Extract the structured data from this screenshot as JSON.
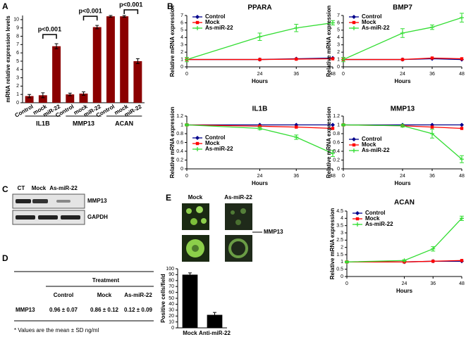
{
  "panels": [
    "A",
    "B",
    "C",
    "D",
    "E"
  ],
  "chart_data": [
    {
      "type": "bar",
      "ylabel": "mRNA relative expression levels",
      "categories": [
        "Control",
        "mock",
        "miR-22",
        "Control",
        "mock",
        "miR-22",
        "Control",
        "mock",
        "miR-22"
      ],
      "groups": [
        "IL1B",
        "MMP13",
        "ACAN"
      ],
      "values": [
        0.8,
        0.9,
        6.8,
        1.0,
        1.1,
        9.1,
        10.4,
        10.4,
        5.0
      ],
      "errors": [
        0.2,
        0.3,
        0.3,
        0.15,
        0.2,
        0.2,
        0.1,
        0.1,
        0.3
      ],
      "color": "#8b0000",
      "ylim": [
        0,
        10.5
      ],
      "yticks": [
        0,
        1,
        2,
        3,
        4,
        5,
        6,
        7,
        8,
        9,
        10
      ],
      "annotations": [
        "p<0.001",
        "p<0.001",
        "p<0.001"
      ]
    },
    {
      "type": "line",
      "title": "PPARA",
      "x": [
        0,
        24,
        36,
        48
      ],
      "xlim": [
        0,
        48
      ],
      "xticks": [
        0,
        24,
        36,
        48
      ],
      "xlabel": "Hours",
      "ylabel": "Relative mRNA expression",
      "ylim": [
        0,
        7
      ],
      "yticks": [
        0,
        1,
        2,
        3,
        4,
        5,
        6,
        7
      ],
      "series": [
        {
          "name": "Control",
          "color": "#00008b",
          "values": [
            1,
            1,
            1.1,
            1.2
          ]
        },
        {
          "name": "Mock",
          "color": "#ff0000",
          "values": [
            1,
            1,
            1.05,
            1.1
          ]
        },
        {
          "name": "As-miR-22",
          "color": "#33dd33",
          "values": [
            1,
            4.1,
            5.3,
            6.0
          ],
          "errors": [
            0.3,
            0.5,
            0.5,
            0.3
          ]
        }
      ]
    },
    {
      "type": "line",
      "title": "BMP7",
      "x": [
        0,
        24,
        36,
        48
      ],
      "xlim": [
        0,
        48
      ],
      "xticks": [
        0,
        24,
        36,
        48
      ],
      "xlabel": "Hours",
      "ylabel": "Relative mRNA expression",
      "ylim": [
        0,
        7
      ],
      "yticks": [
        0,
        1,
        2,
        3,
        4,
        5,
        6,
        7
      ],
      "series": [
        {
          "name": "Control",
          "color": "#00008b",
          "values": [
            1,
            1,
            1.1,
            1.0
          ]
        },
        {
          "name": "Mock",
          "color": "#ff0000",
          "values": [
            1,
            1,
            1.2,
            1.1
          ]
        },
        {
          "name": "As-miR-22",
          "color": "#33dd33",
          "values": [
            1,
            4.6,
            5.4,
            6.7
          ],
          "errors": [
            0.3,
            0.6,
            0.3,
            0.6
          ]
        }
      ]
    },
    {
      "type": "line",
      "title": "IL1B",
      "x": [
        0,
        24,
        36,
        48
      ],
      "xlim": [
        0,
        48
      ],
      "xticks": [
        0,
        24,
        36,
        48
      ],
      "xlabel": "Hours",
      "ylabel": "Relative mRNA expression",
      "ylim": [
        0,
        1.2
      ],
      "yticks": [
        0,
        0.2,
        0.4,
        0.6,
        0.8,
        1,
        1.2
      ],
      "series": [
        {
          "name": "Control",
          "color": "#00008b",
          "values": [
            1,
            1,
            1,
            1
          ]
        },
        {
          "name": "Mock",
          "color": "#ff0000",
          "values": [
            1,
            0.97,
            0.95,
            0.92
          ]
        },
        {
          "name": "As-miR-22",
          "color": "#33dd33",
          "values": [
            1,
            0.92,
            0.72,
            0.35
          ],
          "errors": [
            0.02,
            0.03,
            0.05,
            0.07
          ]
        }
      ]
    },
    {
      "type": "line",
      "title": "MMP13",
      "x": [
        0,
        24,
        36,
        48
      ],
      "xlim": [
        0,
        48
      ],
      "xticks": [
        0,
        24,
        36,
        48
      ],
      "xlabel": "Hours",
      "ylabel": "Relative mRNA expression",
      "ylim": [
        0,
        1.2
      ],
      "yticks": [
        0,
        0.2,
        0.4,
        0.6,
        0.8,
        1,
        1.2
      ],
      "series": [
        {
          "name": "Control",
          "color": "#00008b",
          "values": [
            1,
            1,
            1,
            1
          ]
        },
        {
          "name": "Mock",
          "color": "#ff0000",
          "values": [
            1,
            0.98,
            0.95,
            0.92
          ]
        },
        {
          "name": "As-miR-22",
          "color": "#33dd33",
          "values": [
            1,
            0.98,
            0.8,
            0.22
          ],
          "errors": [
            0.02,
            0.03,
            0.1,
            0.08
          ]
        }
      ]
    },
    {
      "type": "line",
      "title": "ACAN",
      "x": [
        0,
        24,
        36,
        48
      ],
      "xlim": [
        0,
        48
      ],
      "xticks": [
        0,
        24,
        36,
        48
      ],
      "xlabel": "Hours",
      "ylabel": "Relative mRNA expression",
      "ylim": [
        0,
        4.5
      ],
      "yticks": [
        0,
        0.5,
        1,
        1.5,
        2,
        2.5,
        3,
        3.5,
        4,
        4.5
      ],
      "series": [
        {
          "name": "Control",
          "color": "#00008b",
          "values": [
            1,
            1,
            1.05,
            1.05
          ]
        },
        {
          "name": "Mock",
          "color": "#ff0000",
          "values": [
            1,
            1,
            1.05,
            1.1
          ]
        },
        {
          "name": "As-miR-22",
          "color": "#33dd33",
          "values": [
            1,
            1.1,
            1.9,
            4.0
          ],
          "errors": [
            0.05,
            0.05,
            0.15,
            0.15
          ]
        }
      ]
    },
    {
      "type": "bar",
      "ylabel": "Positive cells/field",
      "categories": [
        "Mock",
        "Anti-miR-22"
      ],
      "values": [
        90,
        22
      ],
      "errors": [
        3,
        4
      ],
      "color": "#000000",
      "ylim": [
        0,
        100
      ],
      "yticks": [
        0,
        10,
        20,
        30,
        40,
        50,
        60,
        70,
        80,
        90,
        100
      ]
    }
  ],
  "blot": {
    "lanes": [
      "CT",
      "Mock",
      "As-miR-22"
    ],
    "bands": [
      "MMP13",
      "GAPDH"
    ]
  },
  "table": {
    "group_header": "Treatment",
    "columns": [
      "Control",
      "Mock",
      "As-miR-22"
    ],
    "rows": [
      [
        "MMP13",
        "0.96 ± 0.07",
        "0.86 ± 0.12",
        "0.12 ± 0.09"
      ]
    ],
    "footnote": "* Values are the mean ± SD ng/ml"
  },
  "micrographs": {
    "columns": [
      "Mock",
      "As-miR-22"
    ],
    "label": "MMP13"
  }
}
